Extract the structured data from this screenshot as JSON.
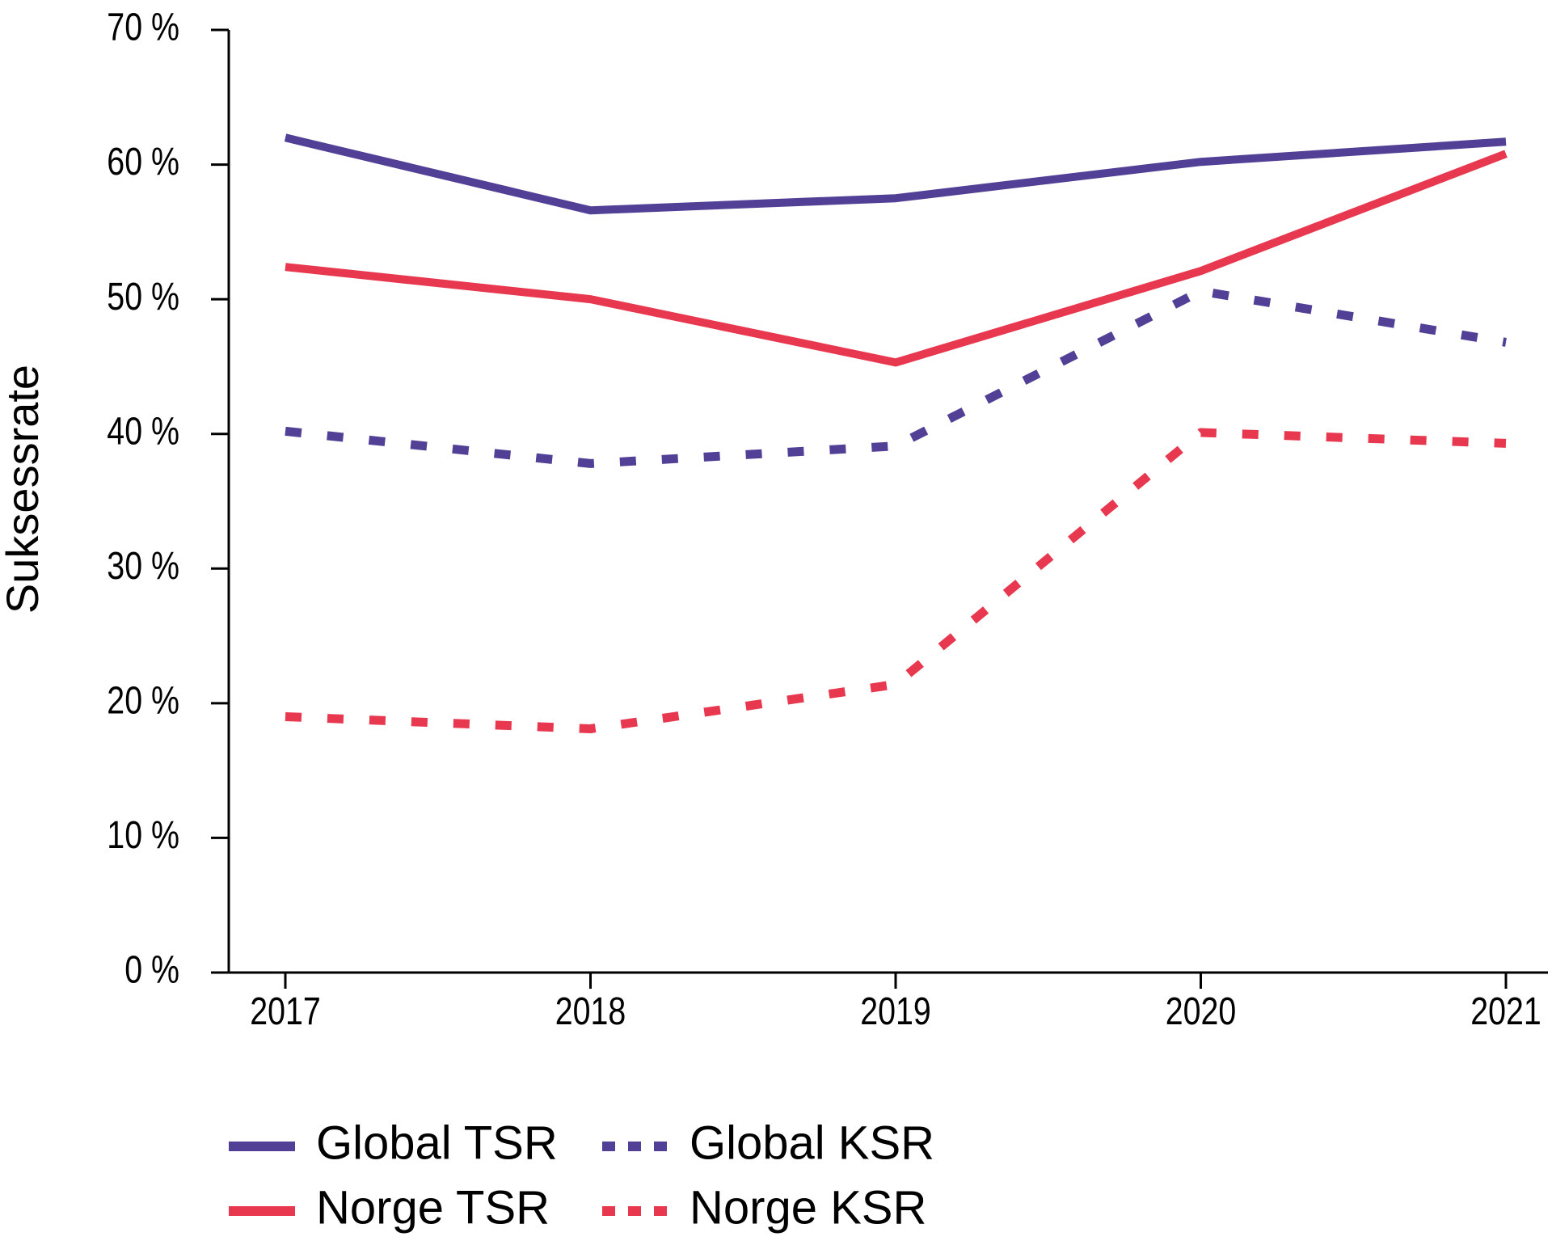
{
  "chart_data": {
    "type": "line",
    "title": "",
    "xlabel": "",
    "ylabel": "Suksessrate",
    "categories": [
      "2017",
      "2018",
      "2019",
      "2020",
      "2021"
    ],
    "y_ticks": [
      "0 %",
      "10 %",
      "20 %",
      "30 %",
      "40 %",
      "50 %",
      "60 %",
      "70 %"
    ],
    "ylim": [
      0,
      70
    ],
    "grid": false,
    "legend_position": "bottom",
    "series": [
      {
        "name": "Global TSR",
        "values": [
          62.0,
          56.6,
          57.5,
          60.2,
          61.7
        ],
        "color": "#524096",
        "style": "solid"
      },
      {
        "name": "Norge TSR",
        "values": [
          52.4,
          50.0,
          45.3,
          52.1,
          60.8
        ],
        "color": "#e8384f",
        "style": "solid"
      },
      {
        "name": "Global KSR",
        "values": [
          40.2,
          37.8,
          39.1,
          50.6,
          46.8
        ],
        "color": "#524096",
        "style": "dashed"
      },
      {
        "name": "Norge KSR",
        "values": [
          19.0,
          18.1,
          21.4,
          40.1,
          39.3
        ],
        "color": "#e8384f",
        "style": "dashed"
      }
    ]
  }
}
